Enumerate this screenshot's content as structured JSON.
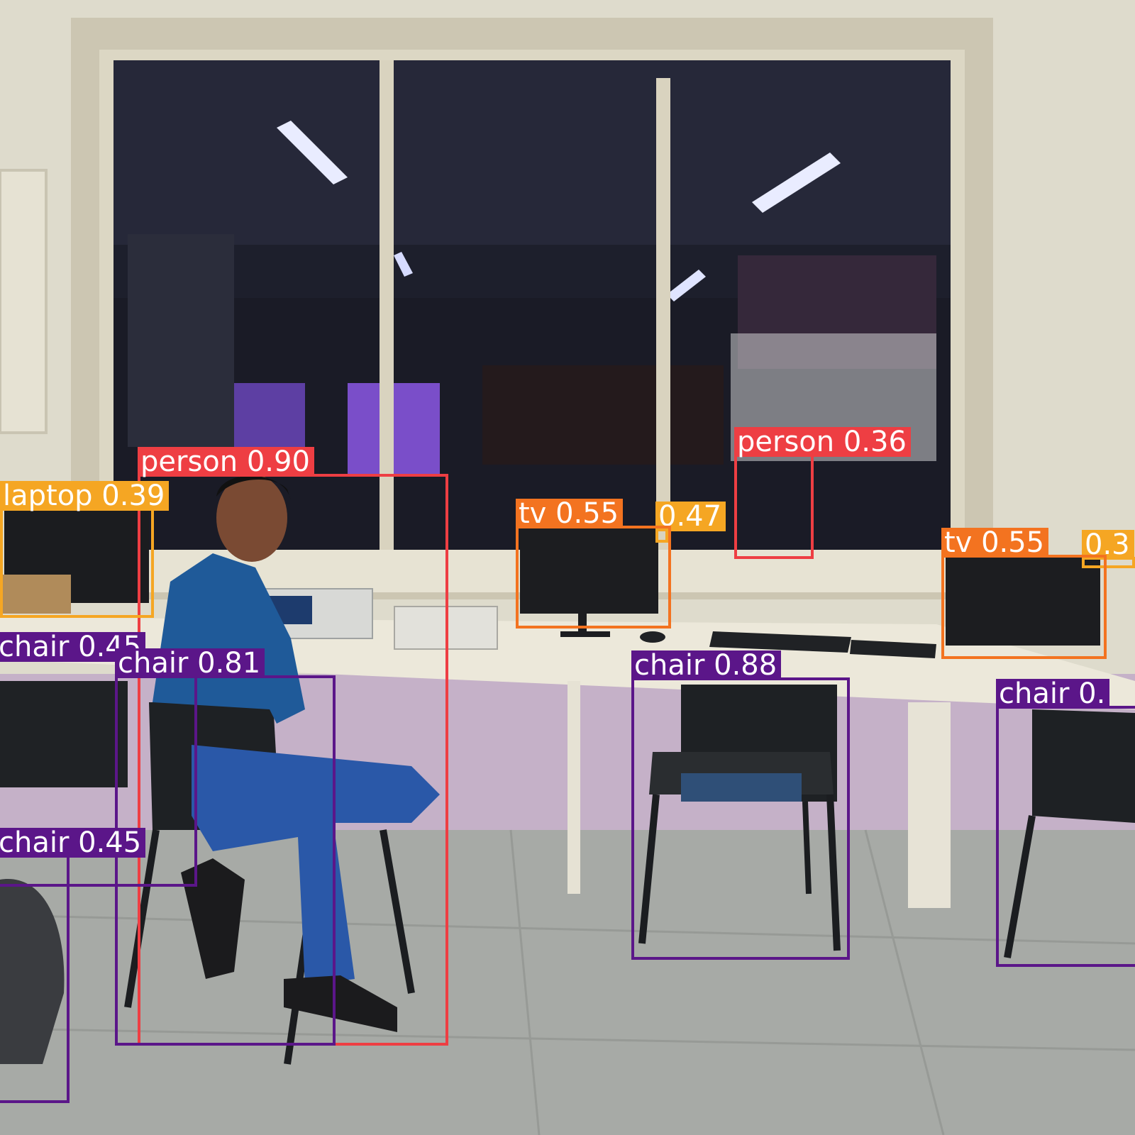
{
  "colors": {
    "person": "#ee3e43",
    "chair": "#5b1689",
    "laptop": "#f5a623",
    "tv": "#f37320",
    "label_text": "#ffffff"
  },
  "detections": [
    {
      "id": "person-1",
      "class": "person",
      "label": "person 0.90",
      "confidence": 0.9
    },
    {
      "id": "person-2",
      "class": "person",
      "label": "person 0.36",
      "confidence": 0.36
    },
    {
      "id": "laptop-1",
      "class": "laptop",
      "label": "laptop 0.39",
      "confidence": 0.39
    },
    {
      "id": "laptop-2",
      "class": "laptop",
      "label": "0.47",
      "confidence": 0.47
    },
    {
      "id": "tv-1",
      "class": "tv",
      "label": "tv 0.55",
      "confidence": 0.55
    },
    {
      "id": "tv-2",
      "class": "tv",
      "label": "tv 0.55",
      "confidence": 0.55
    },
    {
      "id": "laptop-3",
      "class": "laptop",
      "label": "0.3",
      "confidence": 0.3
    },
    {
      "id": "chair-1",
      "class": "chair",
      "label": "chair 0.45",
      "confidence": 0.45
    },
    {
      "id": "chair-2",
      "class": "chair",
      "label": "chair 0.81",
      "confidence": 0.81
    },
    {
      "id": "chair-3",
      "class": "chair",
      "label": "chair 0.88",
      "confidence": 0.88
    },
    {
      "id": "chair-4",
      "class": "chair",
      "label": "chair 0.",
      "confidence": null
    },
    {
      "id": "chair-5",
      "class": "chair",
      "label": "chair 0.45",
      "confidence": 0.45
    }
  ]
}
